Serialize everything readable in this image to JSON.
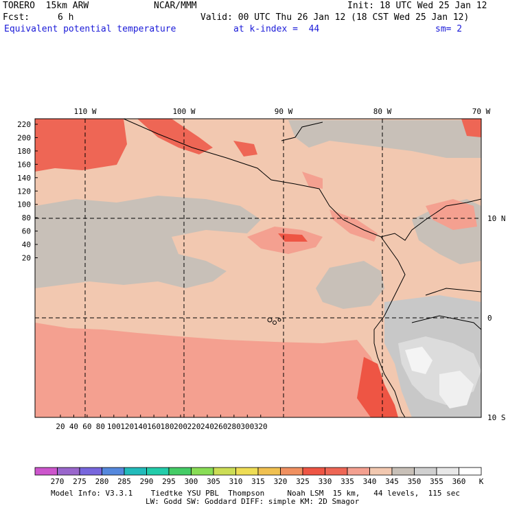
{
  "header": {
    "model": "TORERO  15km ARW",
    "center": "NCAR/MMM",
    "init": "Init: 18 UTC Wed 25 Jan 12",
    "fcst_label": "Fcst:",
    "fcst_value": "6 h",
    "valid": "Valid: 00 UTC Thu 26 Jan 12 (18 CST Wed 25 Jan 12)",
    "field": "Equivalent potential temperature",
    "level": "at k-index =  44",
    "smooth": "sm= 2"
  },
  "axes": {
    "top_lon_labels": [
      "110 W",
      "100 W",
      "90 W",
      "80 W",
      "70 W"
    ],
    "right_lat_labels": [
      "10 N",
      "0",
      "10 S"
    ],
    "left_grid_labels": [
      "220",
      "200",
      "180",
      "160",
      "140",
      "120",
      "100",
      "80",
      "60",
      "40",
      "20"
    ],
    "bottom_grid_labels": [
      "20",
      "40",
      "60",
      "80",
      "100",
      "120",
      "140",
      "160",
      "180",
      "200",
      "220",
      "240",
      "260",
      "280",
      "300",
      "320"
    ]
  },
  "colorbar": {
    "unit": "K",
    "levels": [
      "270",
      "275",
      "280",
      "285",
      "290",
      "295",
      "300",
      "305",
      "310",
      "315",
      "320",
      "325",
      "330",
      "335",
      "340",
      "345",
      "350",
      "355",
      "360"
    ],
    "colors": [
      "#cc55cc",
      "#9966cc",
      "#7766dd",
      "#5588dd",
      "#22bbbb",
      "#22ccaa",
      "#44cc66",
      "#88dd55",
      "#ccdd55",
      "#eedd55",
      "#f0c050",
      "#f09060",
      "#ee5544",
      "#ee6655",
      "#f4a090",
      "#f2c8b0",
      "#c8c0b8",
      "#d0d0d0",
      "#e8e8e8",
      "#ffffff"
    ]
  },
  "footer": {
    "line1": "Model Info: V3.3.1    Tiedtke YSU PBL  Thompson     Noah LSM  15 km,   44 levels,  115 sec",
    "line2": "LW: Godd SW: Goddard DIFF: simple KM: 2D Smagor"
  }
}
